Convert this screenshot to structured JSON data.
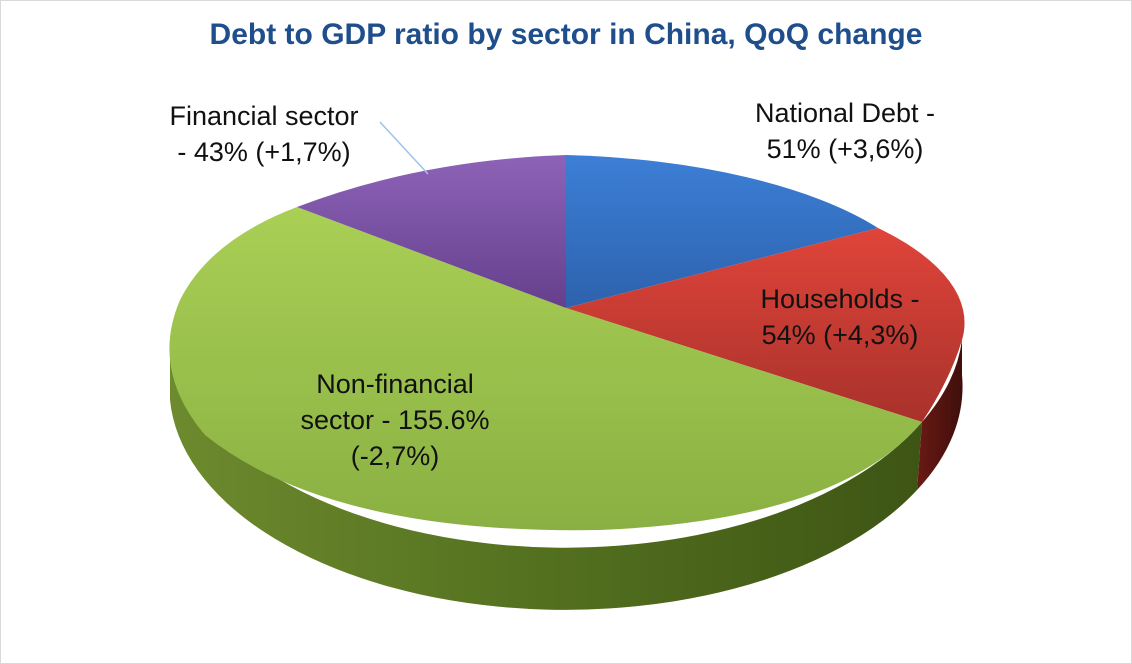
{
  "chart_data": {
    "type": "pie",
    "title": "Debt to GDP ratio by sector in China, QoQ change",
    "three_d": true,
    "legend": "none",
    "slices": [
      {
        "name": "National Debt",
        "value": 51,
        "change": "+3,6%",
        "label_line1": "National Debt -",
        "label_line2": "51% (+3,6%)",
        "color": "#4472c4"
      },
      {
        "name": "Households",
        "value": 54,
        "change": "+4,3%",
        "label_line1": "Households -",
        "label_line2": "54% (+4,3%)",
        "color": "#c0392b"
      },
      {
        "name": "Non-financial sector",
        "value": 155.6,
        "change": "-2,7%",
        "label_line1": "Non-financial",
        "label_line2": "sector - 155.6%",
        "label_line3": "(-2,7%)",
        "color": "#8fb745"
      },
      {
        "name": "Financial sector",
        "value": 43,
        "change": "+1,7%",
        "label_line1": "Financial sector",
        "label_line2": "- 43% (+1,7%)",
        "color": "#7d5ca6"
      }
    ]
  }
}
